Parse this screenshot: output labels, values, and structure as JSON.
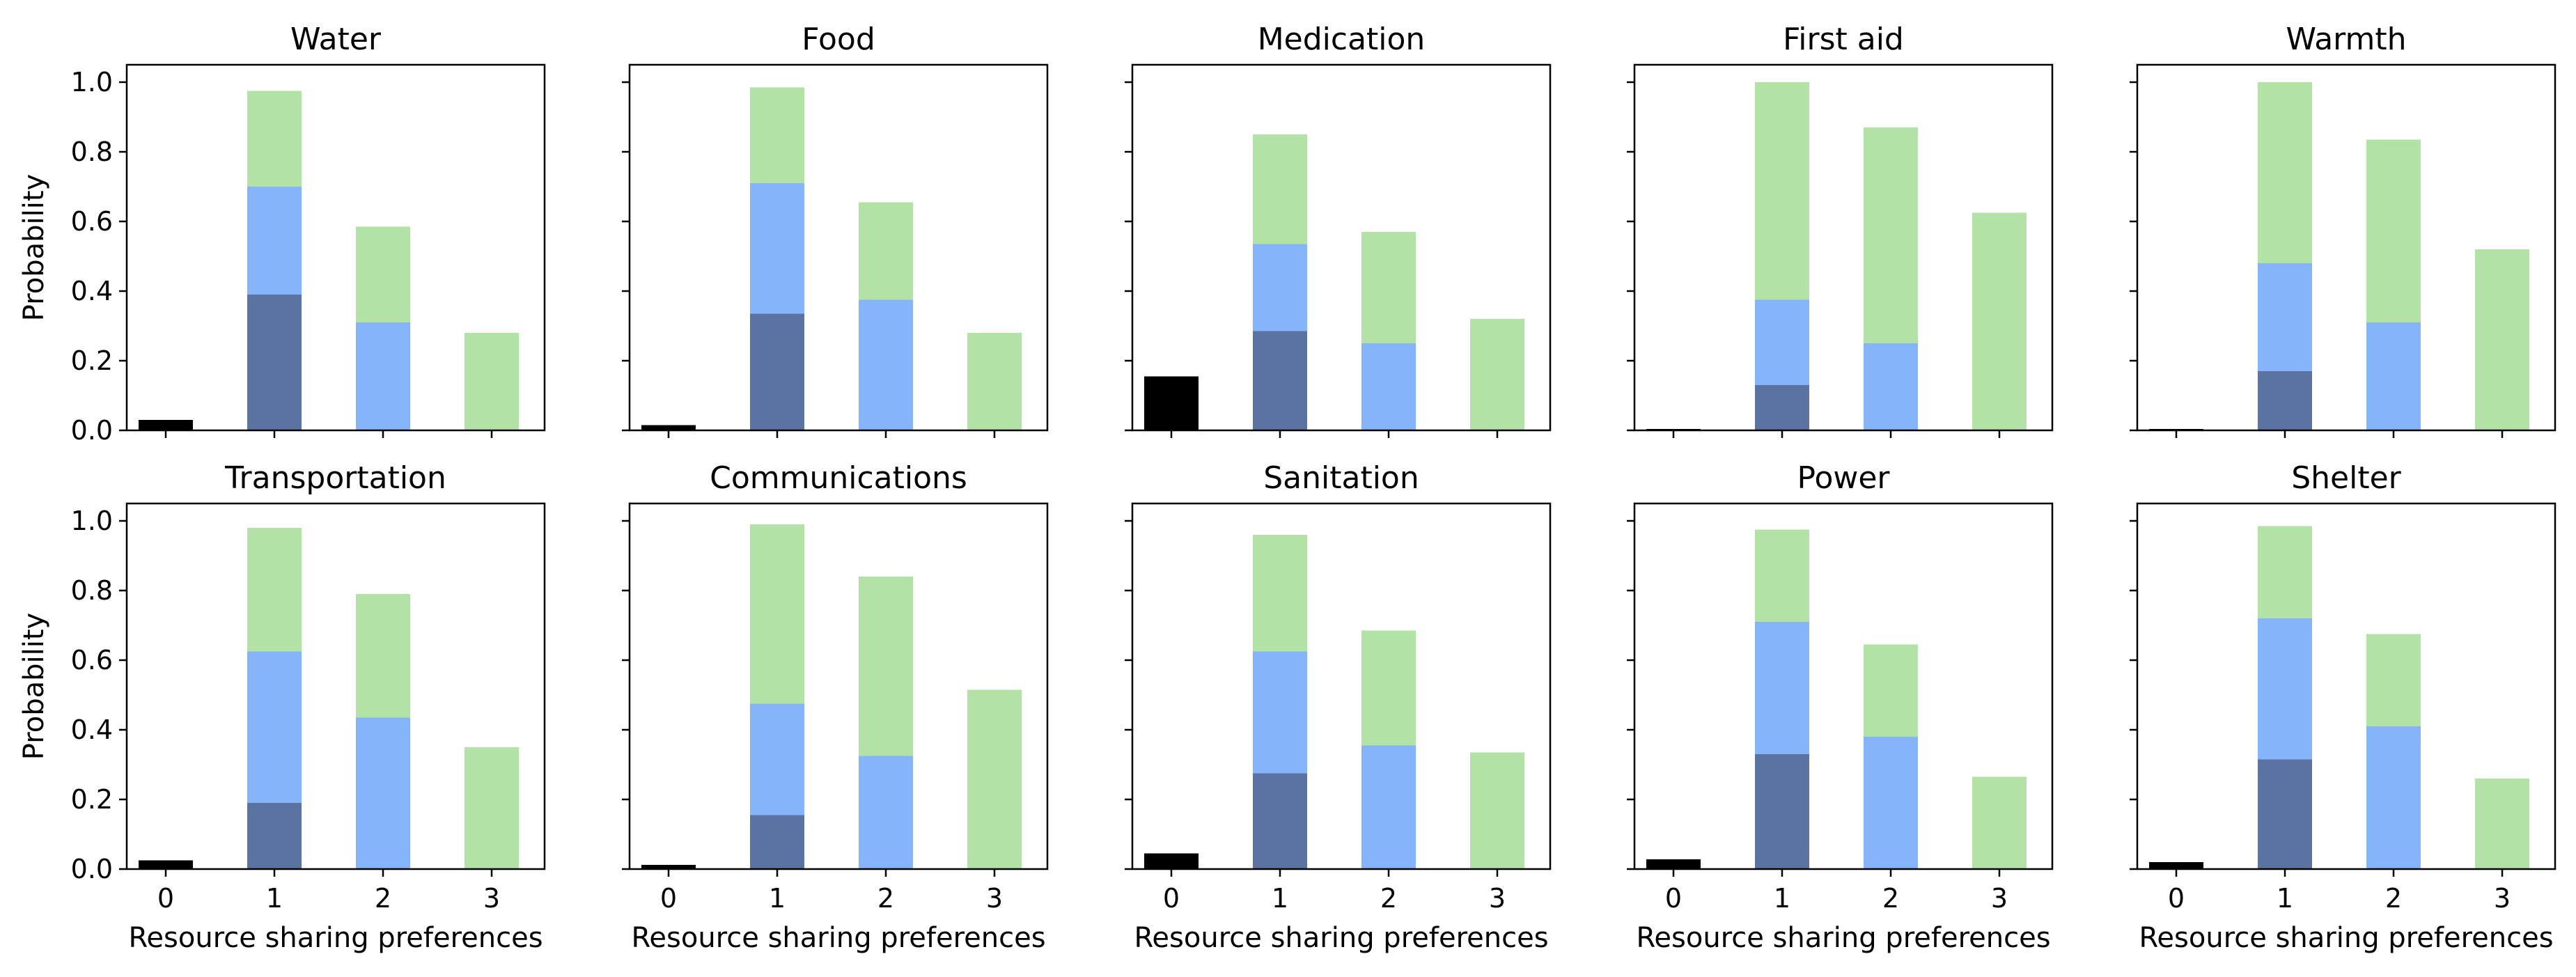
{
  "chart_data": [
    {
      "type": "bar",
      "title": "Water",
      "categories": [
        "0",
        "1",
        "2",
        "3"
      ],
      "xlabel": "",
      "ylabel": "Probability",
      "ylim": [
        0,
        1.05
      ],
      "yticks": [
        "0.0",
        "0.2",
        "0.4",
        "0.6",
        "0.8",
        "1.0"
      ],
      "bars": {
        "0": {
          "black": 0.03
        },
        "1": {
          "dark": 0.39,
          "blue": 0.7,
          "green": 0.975
        },
        "2": {
          "blue": 0.31,
          "green": 0.585
        },
        "3": {
          "green": 0.28
        }
      }
    },
    {
      "type": "bar",
      "title": "Food",
      "categories": [
        "0",
        "1",
        "2",
        "3"
      ],
      "xlabel": "",
      "ylabel": "",
      "ylim": [
        0,
        1.05
      ],
      "yticks": [],
      "bars": {
        "0": {
          "black": 0.015
        },
        "1": {
          "dark": 0.335,
          "blue": 0.71,
          "green": 0.985
        },
        "2": {
          "blue": 0.375,
          "green": 0.655
        },
        "3": {
          "green": 0.28
        }
      }
    },
    {
      "type": "bar",
      "title": "Medication",
      "categories": [
        "0",
        "1",
        "2",
        "3"
      ],
      "xlabel": "",
      "ylabel": "",
      "ylim": [
        0,
        1.05
      ],
      "yticks": [],
      "bars": {
        "0": {
          "black": 0.155
        },
        "1": {
          "dark": 0.285,
          "blue": 0.535,
          "green": 0.85
        },
        "2": {
          "blue": 0.25,
          "green": 0.57
        },
        "3": {
          "green": 0.32
        }
      }
    },
    {
      "type": "bar",
      "title": "First aid",
      "categories": [
        "0",
        "1",
        "2",
        "3"
      ],
      "xlabel": "",
      "ylabel": "",
      "ylim": [
        0,
        1.05
      ],
      "yticks": [],
      "bars": {
        "0": {
          "black": 0.004
        },
        "1": {
          "dark": 0.13,
          "blue": 0.375,
          "green": 1.0
        },
        "2": {
          "blue": 0.25,
          "green": 0.87
        },
        "3": {
          "green": 0.625
        }
      }
    },
    {
      "type": "bar",
      "title": "Warmth",
      "categories": [
        "0",
        "1",
        "2",
        "3"
      ],
      "xlabel": "",
      "ylabel": "",
      "ylim": [
        0,
        1.05
      ],
      "yticks": [],
      "bars": {
        "0": {
          "black": 0.004
        },
        "1": {
          "dark": 0.17,
          "blue": 0.48,
          "green": 1.0
        },
        "2": {
          "blue": 0.31,
          "green": 0.835
        },
        "3": {
          "green": 0.52
        }
      }
    },
    {
      "type": "bar",
      "title": "Transportation",
      "categories": [
        "0",
        "1",
        "2",
        "3"
      ],
      "xlabel": "Resource sharing preferences",
      "ylabel": "Probability",
      "ylim": [
        0,
        1.05
      ],
      "yticks": [
        "0.0",
        "0.2",
        "0.4",
        "0.6",
        "0.8",
        "1.0"
      ],
      "bars": {
        "0": {
          "black": 0.025
        },
        "1": {
          "dark": 0.19,
          "blue": 0.625,
          "green": 0.98
        },
        "2": {
          "blue": 0.435,
          "green": 0.79
        },
        "3": {
          "green": 0.35
        }
      }
    },
    {
      "type": "bar",
      "title": "Communications",
      "categories": [
        "0",
        "1",
        "2",
        "3"
      ],
      "xlabel": "Resource sharing preferences",
      "ylabel": "",
      "ylim": [
        0,
        1.05
      ],
      "yticks": [],
      "bars": {
        "0": {
          "black": 0.012
        },
        "1": {
          "dark": 0.155,
          "blue": 0.475,
          "green": 0.99
        },
        "2": {
          "blue": 0.325,
          "green": 0.84
        },
        "3": {
          "green": 0.515
        }
      }
    },
    {
      "type": "bar",
      "title": "Sanitation",
      "categories": [
        "0",
        "1",
        "2",
        "3"
      ],
      "xlabel": "Resource sharing preferences",
      "ylabel": "",
      "ylim": [
        0,
        1.05
      ],
      "yticks": [],
      "bars": {
        "0": {
          "black": 0.045
        },
        "1": {
          "dark": 0.275,
          "blue": 0.625,
          "green": 0.96
        },
        "2": {
          "blue": 0.355,
          "green": 0.685
        },
        "3": {
          "green": 0.335
        }
      }
    },
    {
      "type": "bar",
      "title": "Power",
      "categories": [
        "0",
        "1",
        "2",
        "3"
      ],
      "xlabel": "Resource sharing preferences",
      "ylabel": "",
      "ylim": [
        0,
        1.05
      ],
      "yticks": [],
      "bars": {
        "0": {
          "black": 0.028
        },
        "1": {
          "dark": 0.33,
          "blue": 0.71,
          "green": 0.975
        },
        "2": {
          "blue": 0.38,
          "green": 0.645
        },
        "3": {
          "green": 0.265
        }
      }
    },
    {
      "type": "bar",
      "title": "Shelter",
      "categories": [
        "0",
        "1",
        "2",
        "3"
      ],
      "xlabel": "Resource sharing preferences",
      "ylabel": "",
      "ylim": [
        0,
        1.05
      ],
      "yticks": [],
      "bars": {
        "0": {
          "black": 0.02
        },
        "1": {
          "dark": 0.315,
          "blue": 0.72,
          "green": 0.985
        },
        "2": {
          "blue": 0.41,
          "green": 0.675
        },
        "3": {
          "green": 0.26
        }
      }
    }
  ],
  "colors": {
    "green": "#b3e2a6",
    "blue": "#86b4fb",
    "dark": "#5b73a1",
    "black": "#000000"
  }
}
